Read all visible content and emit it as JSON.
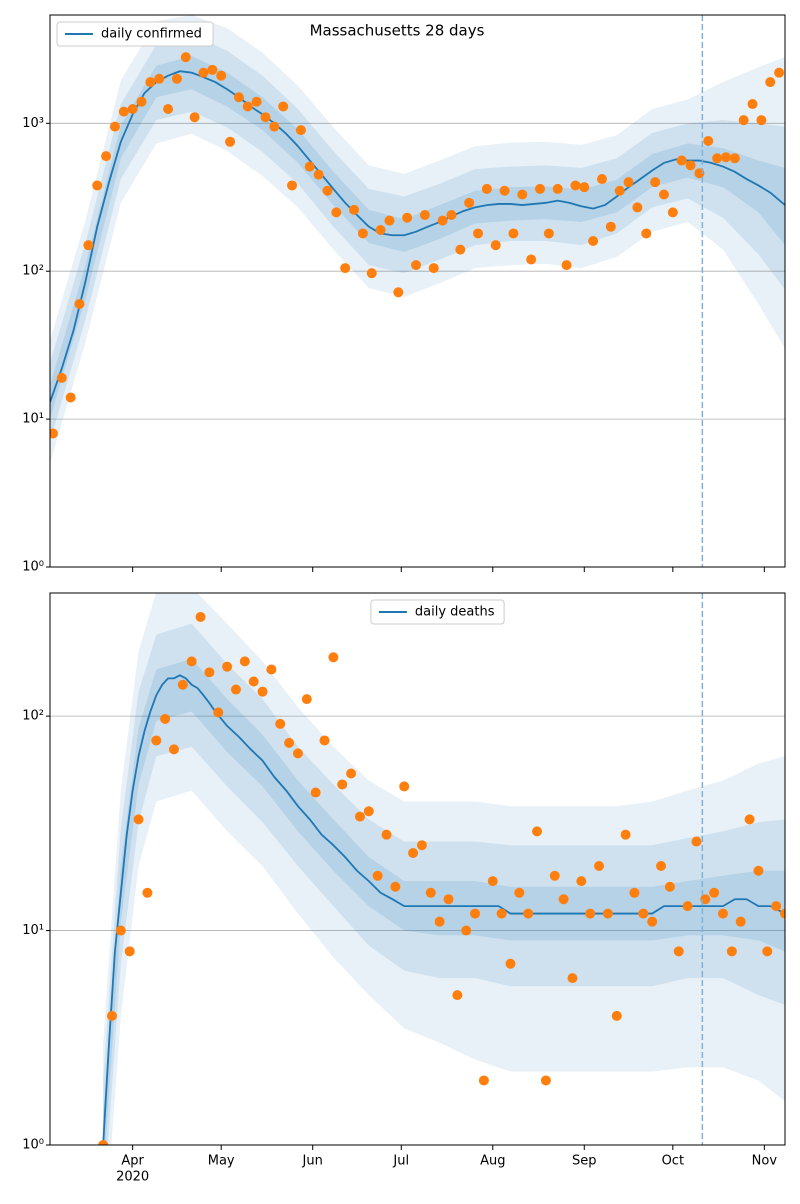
{
  "chart_data": [
    {
      "type": "line",
      "title": "Massachusetts 28 days",
      "yscale": "log",
      "ylim": [
        1,
        5400
      ],
      "xlim": [
        64,
        313
      ],
      "yticks": [
        {
          "value": 1,
          "label": "10⁰"
        },
        {
          "value": 10,
          "label": "10¹"
        },
        {
          "value": 100,
          "label": "10²"
        },
        {
          "value": 1000,
          "label": "10³"
        }
      ],
      "xticks": [
        {
          "value": 92,
          "label": "Apr"
        },
        {
          "value": 122,
          "label": "May"
        },
        {
          "value": 153,
          "label": "Jun"
        },
        {
          "value": 183,
          "label": "Jul"
        },
        {
          "value": 214,
          "label": "Aug"
        },
        {
          "value": 245,
          "label": "Sep"
        },
        {
          "value": 275,
          "label": "Oct"
        },
        {
          "value": 306,
          "label": "Nov"
        }
      ],
      "show_xtick_labels": false,
      "grid": true,
      "legend": "upper left",
      "vline": 285,
      "vline_color": "#7fb1d9",
      "bands": [
        {
          "color": "#1f77b4",
          "opacity": 0.1,
          "x": [
            64,
            76,
            88,
            100,
            112,
            124,
            136,
            148,
            160,
            172,
            184,
            196,
            208,
            220,
            232,
            244,
            256,
            268,
            280,
            292,
            304,
            313
          ],
          "lower": [
            5,
            33,
            290,
            730,
            850,
            650,
            440,
            270,
            140,
            77,
            67,
            83,
            105,
            110,
            112,
            105,
            125,
            185,
            215,
            140,
            60,
            30
          ],
          "upper": [
            34,
            220,
            1950,
            4900,
            5400,
            4400,
            3000,
            1800,
            940,
            520,
            455,
            560,
            700,
            740,
            750,
            715,
            830,
            1250,
            1450,
            1900,
            2400,
            2800
          ]
        },
        {
          "color": "#1f77b4",
          "opacity": 0.12,
          "x": [
            64,
            76,
            88,
            100,
            112,
            124,
            136,
            148,
            160,
            172,
            184,
            196,
            208,
            220,
            232,
            244,
            256,
            268,
            280,
            292,
            304,
            313
          ],
          "lower": [
            7,
            47,
            420,
            1050,
            1200,
            940,
            640,
            390,
            200,
            110,
            97,
            120,
            150,
            160,
            160,
            150,
            180,
            270,
            310,
            230,
            130,
            75
          ],
          "upper": [
            24,
            155,
            1350,
            3400,
            4000,
            3100,
            2100,
            1250,
            650,
            360,
            320,
            390,
            490,
            510,
            520,
            500,
            580,
            860,
            1000,
            1050,
            1000,
            950
          ]
        },
        {
          "color": "#1f77b4",
          "opacity": 0.14,
          "x": [
            64,
            76,
            88,
            100,
            112,
            124,
            136,
            148,
            160,
            172,
            184,
            196,
            208,
            220,
            232,
            244,
            256,
            268,
            280,
            292,
            304,
            313
          ],
          "lower": [
            10,
            65,
            580,
            1500,
            1700,
            1300,
            900,
            540,
            280,
            155,
            135,
            165,
            210,
            220,
            225,
            215,
            250,
            370,
            430,
            370,
            250,
            150
          ],
          "upper": [
            17,
            110,
            970,
            2450,
            2850,
            2200,
            1500,
            910,
            470,
            260,
            225,
            280,
            350,
            370,
            375,
            355,
            415,
            620,
            730,
            680,
            560,
            500
          ]
        }
      ],
      "series": [
        {
          "name": "daily confirmed",
          "color": "#1f77b4",
          "x": [
            64,
            68,
            72,
            76,
            80,
            84,
            88,
            92,
            96,
            100,
            104,
            108,
            112,
            116,
            120,
            124,
            128,
            132,
            136,
            140,
            144,
            148,
            152,
            156,
            160,
            164,
            168,
            172,
            176,
            180,
            184,
            188,
            192,
            196,
            200,
            204,
            208,
            212,
            216,
            220,
            224,
            228,
            232,
            236,
            240,
            244,
            248,
            252,
            256,
            260,
            264,
            268,
            272,
            276,
            280,
            284,
            288,
            292,
            296,
            300,
            304,
            308,
            313
          ],
          "values": [
            13,
            22,
            40,
            85,
            200,
            400,
            750,
            1150,
            1600,
            1900,
            2100,
            2250,
            2200,
            2050,
            1900,
            1700,
            1500,
            1300,
            1150,
            1000,
            850,
            700,
            560,
            450,
            360,
            290,
            240,
            200,
            180,
            175,
            175,
            185,
            200,
            215,
            235,
            255,
            270,
            280,
            285,
            285,
            280,
            285,
            290,
            300,
            290,
            275,
            265,
            280,
            320,
            370,
            420,
            480,
            540,
            570,
            560,
            560,
            540,
            510,
            470,
            420,
            380,
            340,
            280
          ]
        }
      ],
      "scatter": {
        "color": "#ff7f0e",
        "x": [
          65,
          68,
          71,
          74,
          77,
          80,
          83,
          86,
          89,
          92,
          95,
          98,
          101,
          104,
          107,
          110,
          113,
          116,
          119,
          122,
          125,
          128,
          131,
          134,
          137,
          140,
          143,
          146,
          149,
          152,
          155,
          158,
          161,
          164,
          167,
          170,
          173,
          176,
          179,
          182,
          185,
          188,
          191,
          194,
          197,
          200,
          203,
          206,
          209,
          212,
          215,
          218,
          221,
          224,
          227,
          230,
          233,
          236,
          239,
          242,
          245,
          248,
          251,
          254,
          257,
          260,
          263,
          266,
          269,
          272,
          275,
          278,
          281,
          284,
          287,
          290,
          293,
          296,
          299,
          302,
          305,
          308,
          311
        ],
        "values": [
          8,
          19,
          14,
          60,
          150,
          380,
          600,
          950,
          1200,
          1250,
          1400,
          1900,
          2000,
          1250,
          2000,
          2800,
          1100,
          2200,
          2300,
          2100,
          750,
          1500,
          1300,
          1400,
          1100,
          950,
          1300,
          380,
          900,
          510,
          450,
          350,
          250,
          105,
          260,
          180,
          97,
          190,
          220,
          72,
          230,
          110,
          240,
          105,
          220,
          240,
          140,
          290,
          180,
          360,
          150,
          350,
          180,
          330,
          120,
          360,
          180,
          360,
          110,
          380,
          370,
          160,
          420,
          200,
          350,
          400,
          270,
          180,
          400,
          330,
          250,
          560,
          520,
          460,
          760,
          580,
          590,
          580,
          1050,
          1350,
          1050,
          1900,
          2200
        ]
      }
    },
    {
      "type": "line",
      "yscale": "log",
      "ylim": [
        1,
        375
      ],
      "xlim": [
        64,
        313
      ],
      "yticks": [
        {
          "value": 1,
          "label": "10⁰"
        },
        {
          "value": 10,
          "label": "10¹"
        },
        {
          "value": 100,
          "label": "10²"
        }
      ],
      "xticks": [
        {
          "value": 92,
          "label": "Apr"
        },
        {
          "value": 122,
          "label": "May"
        },
        {
          "value": 153,
          "label": "Jun"
        },
        {
          "value": 183,
          "label": "Jul"
        },
        {
          "value": 214,
          "label": "Aug"
        },
        {
          "value": 245,
          "label": "Sep"
        },
        {
          "value": 275,
          "label": "Oct"
        },
        {
          "value": 306,
          "label": "Nov"
        }
      ],
      "year_label": "2020",
      "show_xtick_labels": true,
      "grid": true,
      "legend": "upper center",
      "vline": 285,
      "vline_color": "#7fb1d9",
      "bands": [
        {
          "color": "#1f77b4",
          "opacity": 0.1,
          "x": [
            82,
            88,
            94,
            100,
            112,
            124,
            136,
            148,
            160,
            172,
            184,
            196,
            208,
            220,
            232,
            244,
            256,
            268,
            280,
            292,
            304,
            313
          ],
          "lower": [
            0.3,
            4,
            20,
            40,
            45,
            29,
            20,
            12,
            7.5,
            5,
            3.5,
            3,
            2.5,
            2.2,
            2.2,
            2.2,
            2.2,
            2.2,
            2.3,
            2.3,
            2,
            1.6
          ],
          "upper": [
            3,
            45,
            200,
            380,
            400,
            270,
            180,
            110,
            72,
            50,
            40,
            40,
            40,
            38,
            38,
            38,
            38,
            40,
            45,
            50,
            60,
            65
          ]
        },
        {
          "color": "#1f77b4",
          "opacity": 0.12,
          "x": [
            82,
            88,
            94,
            100,
            112,
            124,
            136,
            148,
            160,
            172,
            184,
            196,
            208,
            220,
            232,
            244,
            256,
            268,
            280,
            292,
            304,
            313
          ],
          "lower": [
            0.5,
            7,
            32,
            65,
            72,
            47,
            32,
            20,
            13,
            8.5,
            6.5,
            6,
            6,
            5.5,
            5.5,
            5.5,
            5.5,
            5.5,
            6,
            6,
            5,
            4.5
          ],
          "upper": [
            2,
            30,
            130,
            240,
            270,
            175,
            120,
            72,
            48,
            33,
            26,
            26,
            26,
            25,
            25,
            25,
            25,
            25,
            27,
            29,
            32,
            33
          ]
        },
        {
          "color": "#1f77b4",
          "opacity": 0.14,
          "x": [
            82,
            88,
            94,
            100,
            112,
            124,
            136,
            148,
            160,
            172,
            184,
            196,
            208,
            220,
            232,
            244,
            256,
            268,
            280,
            292,
            304,
            313
          ],
          "lower": [
            0.7,
            11,
            48,
            95,
            105,
            68,
            47,
            29,
            19,
            13,
            10,
            9.5,
            9.5,
            9,
            9,
            9,
            9,
            9,
            9.5,
            9.5,
            9,
            8
          ],
          "upper": [
            1.4,
            20,
            88,
            165,
            185,
            120,
            82,
            50,
            33,
            22,
            17,
            17,
            17,
            16,
            16,
            16,
            16,
            16,
            17,
            18,
            19,
            19
          ]
        }
      ],
      "series": [
        {
          "name": "daily deaths",
          "color": "#1f77b4",
          "x": [
            82,
            84,
            86,
            88,
            90,
            92,
            94,
            96,
            98,
            100,
            102,
            104,
            106,
            108,
            110,
            112,
            114,
            116,
            118,
            120,
            124,
            128,
            132,
            136,
            140,
            144,
            148,
            152,
            156,
            160,
            164,
            168,
            172,
            176,
            180,
            184,
            188,
            192,
            196,
            200,
            204,
            208,
            212,
            216,
            220,
            224,
            228,
            232,
            236,
            240,
            244,
            248,
            252,
            256,
            260,
            264,
            268,
            272,
            276,
            280,
            284,
            288,
            292,
            296,
            300,
            304,
            308,
            313
          ],
          "values": [
            1,
            3,
            8,
            15,
            28,
            45,
            65,
            85,
            105,
            125,
            140,
            150,
            150,
            155,
            150,
            140,
            135,
            125,
            115,
            105,
            90,
            80,
            70,
            62,
            52,
            45,
            38,
            33,
            28,
            25,
            22,
            19,
            17,
            15,
            14,
            13,
            13,
            13,
            13,
            13,
            13,
            13,
            13,
            13,
            12,
            12,
            12,
            12,
            12,
            12,
            12,
            12,
            12,
            12,
            12,
            12,
            12,
            13,
            13,
            13,
            13,
            13,
            13,
            14,
            14,
            13,
            13,
            12
          ]
        }
      ],
      "scatter": {
        "color": "#ff7f0e",
        "x": [
          82,
          85,
          88,
          91,
          94,
          97,
          100,
          103,
          106,
          109,
          112,
          115,
          118,
          121,
          124,
          127,
          130,
          133,
          136,
          139,
          142,
          145,
          148,
          151,
          154,
          157,
          160,
          163,
          166,
          169,
          172,
          175,
          178,
          181,
          184,
          187,
          190,
          193,
          196,
          199,
          202,
          205,
          208,
          211,
          214,
          217,
          220,
          223,
          226,
          229,
          232,
          235,
          238,
          241,
          244,
          247,
          250,
          253,
          256,
          259,
          262,
          265,
          268,
          271,
          274,
          277,
          280,
          283,
          286,
          289,
          292,
          295,
          298,
          301,
          304,
          307,
          310,
          313
        ],
        "values": [
          1,
          4,
          10,
          8,
          33,
          15,
          77,
          97,
          70,
          140,
          180,
          290,
          160,
          104,
          170,
          133,
          180,
          145,
          130,
          165,
          92,
          75,
          67,
          120,
          44,
          77,
          188,
          48,
          54,
          34,
          36,
          18,
          28,
          16,
          47,
          23,
          25,
          15,
          11,
          14,
          5,
          10,
          12,
          2,
          17,
          12,
          7,
          15,
          12,
          29,
          2,
          18,
          14,
          6,
          17,
          12,
          20,
          12,
          4,
          28,
          15,
          12,
          11,
          20,
          16,
          8,
          13,
          26,
          14,
          15,
          12,
          8,
          11,
          33,
          19,
          8,
          13,
          12
        ]
      }
    }
  ]
}
